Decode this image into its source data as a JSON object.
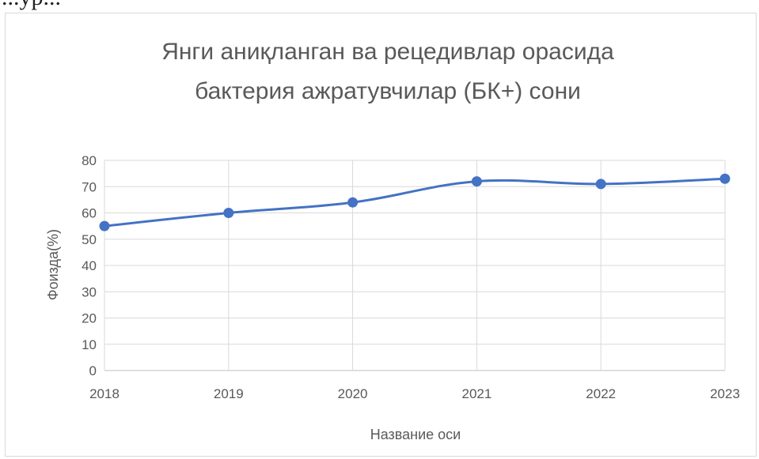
{
  "top_fragment": "...ур...",
  "chart_data": {
    "type": "line",
    "title_lines": [
      "Янги аниқланган ва рецедивлар орасида",
      "бактерия ажратувчилар (БК+) сони"
    ],
    "xlabel": "Название оси",
    "ylabel": "Фоизда(%)",
    "categories": [
      "2018",
      "2019",
      "2020",
      "2021",
      "2022",
      "2023"
    ],
    "series": [
      {
        "values": [
          55,
          60,
          64,
          72,
          71,
          73
        ],
        "color": "#4472c4"
      }
    ],
    "ylim": [
      0,
      80
    ],
    "yticks": [
      0,
      10,
      20,
      30,
      40,
      50,
      60,
      70,
      80
    ],
    "grid": true,
    "legend": "none"
  }
}
